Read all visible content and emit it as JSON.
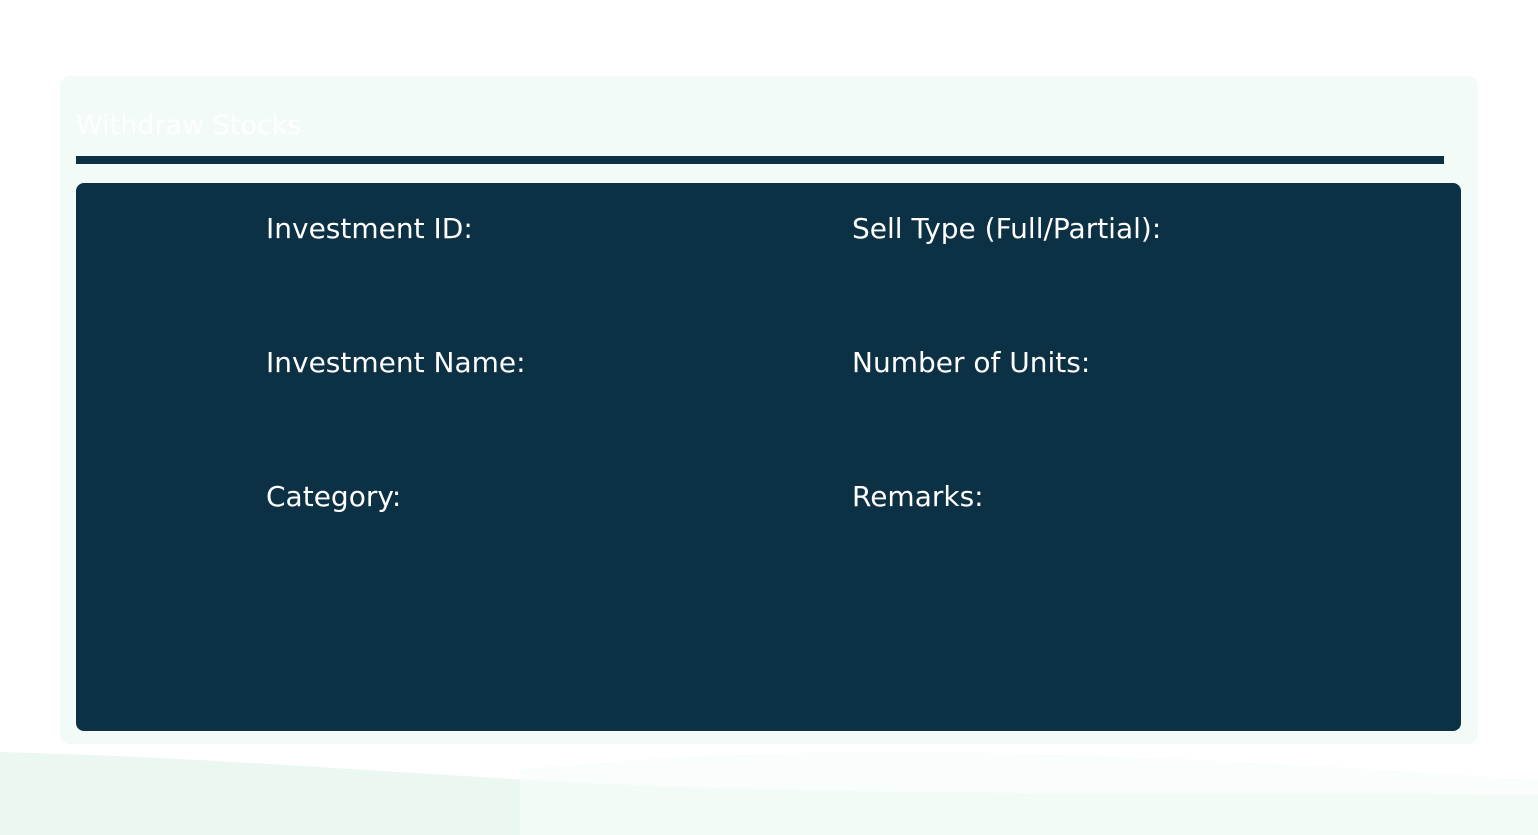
{
  "page": {
    "title": "Withdraw Stocks"
  },
  "form": {
    "fields": [
      {
        "label": "Investment ID:"
      },
      {
        "label": "Investment Name:"
      },
      {
        "label": "Category:"
      },
      {
        "label": "Sell Type (Full/Partial):"
      },
      {
        "label": "Number of Units:"
      },
      {
        "label": "Remarks:"
      }
    ]
  },
  "colors": {
    "panel": "#0c3044",
    "card": "#f2fbf7",
    "wave": "#eaf8f1"
  }
}
